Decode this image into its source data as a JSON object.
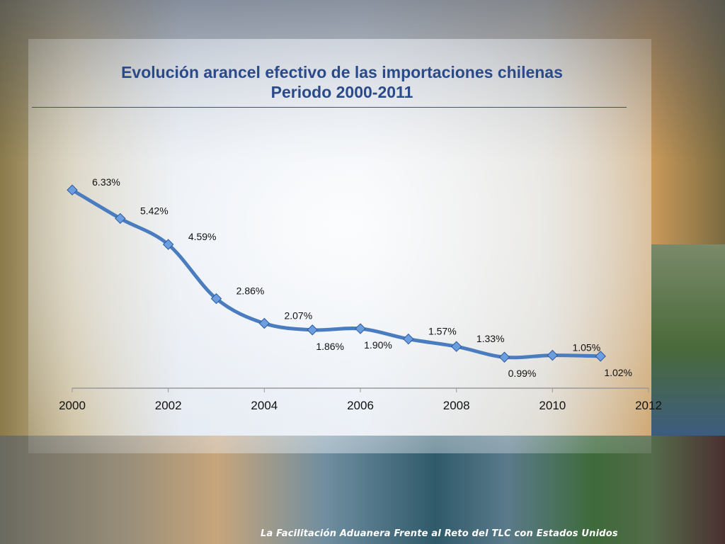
{
  "slide": {
    "title_line1": "Evolución arancel efectivo de las importaciones chilenas",
    "title_line2": "Periodo 2000-2011",
    "footer": "La Facilitación Aduanera  Frente al Reto del TLC con Estados Unidos"
  },
  "chart_data": {
    "type": "line",
    "title": "Evolución arancel efectivo de las importaciones chilenas Periodo 2000-2011",
    "xlabel": "",
    "ylabel": "",
    "xlim": [
      2000,
      2012
    ],
    "ylim": [
      0,
      7
    ],
    "x_ticks": [
      "2000",
      "2002",
      "2004",
      "2006",
      "2008",
      "2010",
      "2012"
    ],
    "grid": false,
    "line_color": "#4a7cc0",
    "marker": "diamond",
    "x": [
      2000,
      2001,
      2002,
      2003,
      2004,
      2005,
      2006,
      2007,
      2008,
      2009,
      2010,
      2011
    ],
    "values": [
      6.33,
      5.42,
      4.59,
      2.86,
      2.07,
      1.86,
      1.9,
      1.57,
      1.33,
      0.99,
      1.05,
      1.02
    ],
    "data_labels": [
      "6.33%",
      "5.42%",
      "4.59%",
      "2.86%",
      "2.07%",
      "1.86%",
      "1.90%",
      "1.57%",
      "1.33%",
      "0.99%",
      "1.05%",
      "1.02%"
    ]
  }
}
